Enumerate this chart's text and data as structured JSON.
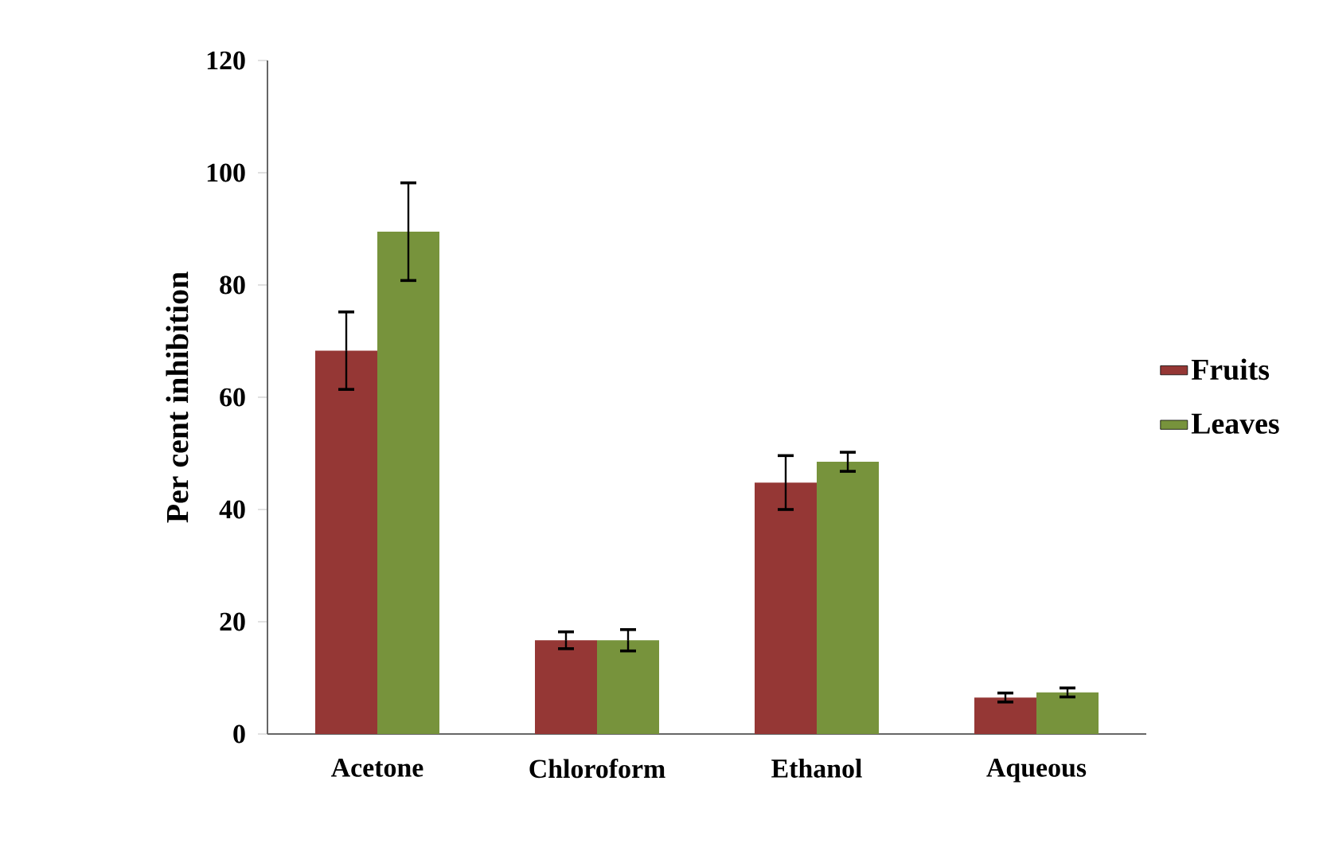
{
  "chart_data": {
    "type": "bar",
    "ylabel": "Per cent inhibition",
    "categories": [
      "Acetone",
      "Chloroform",
      "Ethanol",
      "Aqueous"
    ],
    "series": [
      {
        "name": "Fruits",
        "color": "#953735",
        "values": [
          68.3,
          16.7,
          44.8,
          6.5
        ],
        "errors": [
          6.9,
          1.5,
          4.8,
          0.8
        ]
      },
      {
        "name": "Leaves",
        "color": "#77933c",
        "values": [
          89.5,
          16.7,
          48.5,
          7.4
        ],
        "errors": [
          8.7,
          1.9,
          1.7,
          0.8
        ]
      }
    ],
    "ylim": [
      0,
      120
    ],
    "yticks": [
      0,
      20,
      40,
      60,
      80,
      100,
      120
    ],
    "legend": "right"
  }
}
